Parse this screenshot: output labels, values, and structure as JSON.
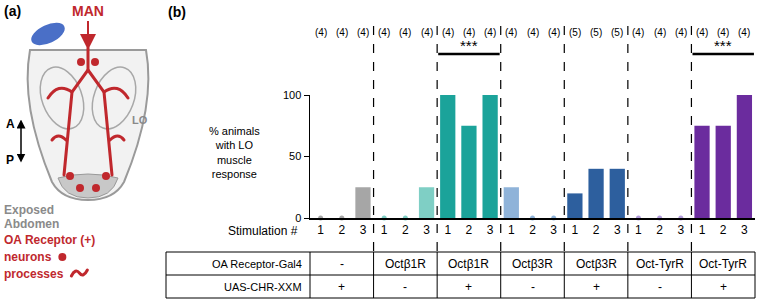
{
  "panel_a": {
    "label": "(a)",
    "neuron_label": "MAN",
    "organ_label": "LO",
    "axis_labels": [
      "A",
      "P"
    ],
    "exposed_label": [
      "Exposed",
      "Abdomen"
    ],
    "receptor_label": "OA Receptor (+)",
    "legend": [
      {
        "text": "neurons",
        "marker": "dot"
      },
      {
        "text": "processes",
        "marker": "process"
      }
    ],
    "color": "#c0282d"
  },
  "chart_data": {
    "type": "bar",
    "panel_label": "(b)",
    "y_label": [
      "% animals",
      "with LO",
      "muscle",
      "response"
    ],
    "x_label": "Stimulation #",
    "ylim": [
      0,
      100
    ],
    "yticks": [
      0,
      50,
      100
    ],
    "grid": false,
    "row_labels": [
      "OA Receptor-Gal4",
      "UAS-CHR-XXM"
    ],
    "groups": [
      {
        "rows": [
          "-",
          "+"
        ],
        "categories": [
          "1",
          "2",
          "3"
        ],
        "values": [
          0,
          0,
          25
        ],
        "counts": [
          "(4)",
          "(4)",
          "(4)"
        ],
        "color": "#a6a6a6"
      },
      {
        "rows": [
          "Octβ1R",
          "-"
        ],
        "categories": [
          "1",
          "2",
          "3"
        ],
        "values": [
          0,
          0,
          25
        ],
        "counts": [
          "(4)",
          "(4)",
          "(4)"
        ],
        "color": "#7fcfc5"
      },
      {
        "rows": [
          "Octβ1R",
          "+"
        ],
        "categories": [
          "1",
          "2",
          "3"
        ],
        "values": [
          100,
          75,
          100
        ],
        "counts": [
          "(4)",
          "(4)",
          "(4)"
        ],
        "color": "#1ba39a",
        "significance": "***"
      },
      {
        "rows": [
          "Octβ3R",
          "-"
        ],
        "categories": [
          "1",
          "2",
          "3"
        ],
        "values": [
          25,
          0,
          0
        ],
        "counts": [
          "(4)",
          "(4)",
          "(4)"
        ],
        "color": "#8fb3d9"
      },
      {
        "rows": [
          "Octβ3R",
          "+"
        ],
        "categories": [
          "1",
          "2",
          "3"
        ],
        "values": [
          20,
          40,
          40
        ],
        "counts": [
          "(5)",
          "(5)",
          "(5)"
        ],
        "color": "#2d5f9e"
      },
      {
        "rows": [
          "Oct-TyrR",
          "-"
        ],
        "categories": [
          "1",
          "2",
          "3"
        ],
        "values": [
          0,
          0,
          0
        ],
        "counts": [
          "(4)",
          "(4)",
          "(4)"
        ],
        "color": "#b39ddb"
      },
      {
        "rows": [
          "Oct-TyrR",
          "+"
        ],
        "categories": [
          "1",
          "2",
          "3"
        ],
        "values": [
          75,
          75,
          100
        ],
        "counts": [
          "(4)",
          "(4)",
          "(4)"
        ],
        "color": "#6b2c9e",
        "significance": "***"
      }
    ]
  }
}
